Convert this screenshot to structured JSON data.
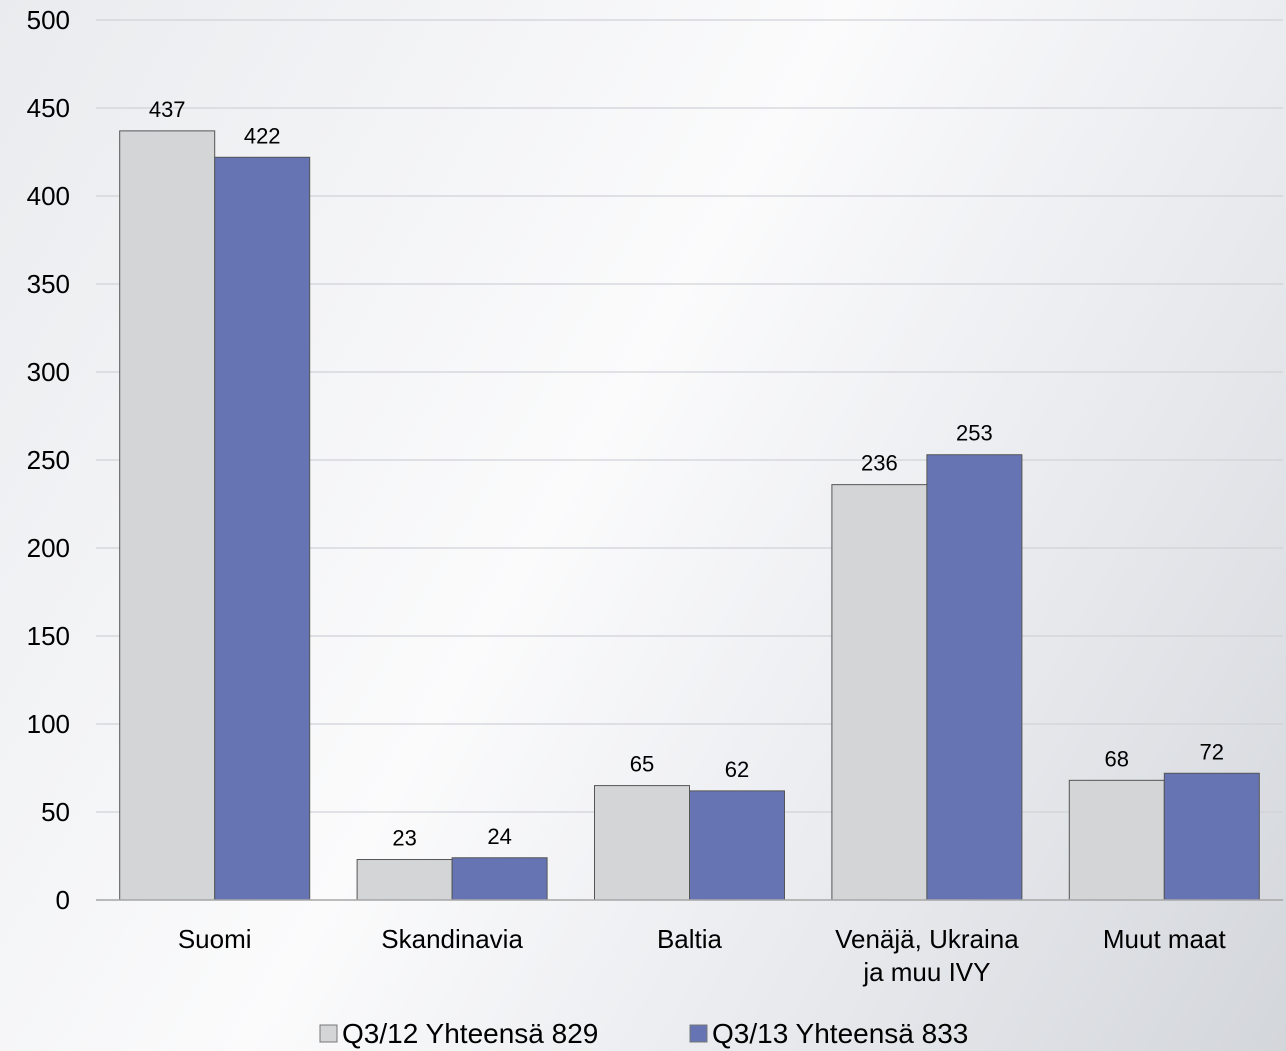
{
  "chart_data": {
    "type": "bar",
    "title": "",
    "xlabel": "",
    "ylabel": "",
    "ylim": [
      0,
      500
    ],
    "yticks": [
      0,
      50,
      100,
      150,
      200,
      250,
      300,
      350,
      400,
      450,
      500
    ],
    "grid": true,
    "legend_position": "bottom",
    "categories": [
      "Suomi",
      "Skandinavia",
      "Baltia",
      "Venäjä, Ukraina ja muu IVY",
      "Muut maat"
    ],
    "category_lines": [
      [
        "Suomi"
      ],
      [
        "Skandinavia"
      ],
      [
        "Baltia"
      ],
      [
        "Venäjä, Ukraina",
        "ja muu IVY"
      ],
      [
        "Muut maat"
      ]
    ],
    "series": [
      {
        "name": "Q3/12 Yhteensä 829",
        "values": [
          437,
          23,
          65,
          236,
          68
        ],
        "color": "#d4d5d7"
      },
      {
        "name": "Q3/13 Yhteensä 833",
        "values": [
          422,
          24,
          62,
          253,
          72
        ],
        "color": "#6674b4"
      }
    ]
  }
}
